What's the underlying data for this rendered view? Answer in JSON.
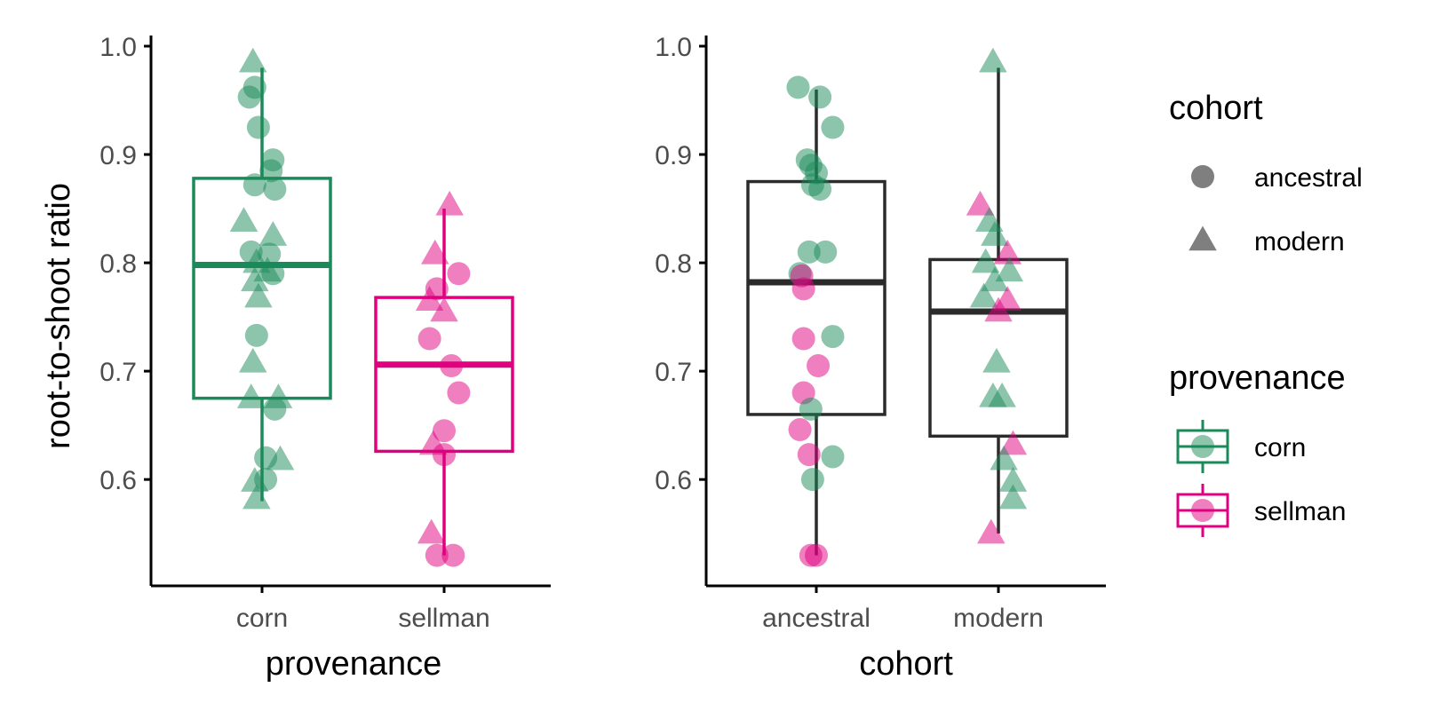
{
  "colors": {
    "corn": "#1b8a5a",
    "sellman": "#e0007f",
    "neutral": "#2b2b2b",
    "legend_shape": "#7f7f7f"
  },
  "chart_data": [
    {
      "type": "box",
      "panel": "left",
      "xlabel": "provenance",
      "ylabel": "root-to-shoot ratio",
      "categories": [
        "corn",
        "sellman"
      ],
      "ylim": [
        0.51,
        1.0
      ],
      "yticks": [
        0.6,
        0.7,
        0.8,
        0.9,
        1.0
      ],
      "ytick_labels": [
        "0.6",
        "0.7",
        "0.8",
        "0.9",
        "1.0"
      ],
      "boxes": [
        {
          "category": "corn",
          "color_key": "corn",
          "lower_whisker": 0.58,
          "q1": 0.675,
          "median": 0.798,
          "q3": 0.878,
          "upper_whisker": 0.98
        },
        {
          "category": "sellman",
          "color_key": "sellman",
          "lower_whisker": 0.53,
          "q1": 0.626,
          "median": 0.706,
          "q3": 0.768,
          "upper_whisker": 0.85
        }
      ],
      "points": [
        {
          "category": "corn",
          "color_key": "corn",
          "shape": "triangle",
          "jitter": -0.05,
          "y": 0.985
        },
        {
          "category": "corn",
          "color_key": "corn",
          "shape": "circle",
          "jitter": -0.04,
          "y": 0.962
        },
        {
          "category": "corn",
          "color_key": "corn",
          "shape": "circle",
          "jitter": -0.07,
          "y": 0.953
        },
        {
          "category": "corn",
          "color_key": "corn",
          "shape": "circle",
          "jitter": -0.02,
          "y": 0.925
        },
        {
          "category": "corn",
          "color_key": "corn",
          "shape": "circle",
          "jitter": 0.06,
          "y": 0.895
        },
        {
          "category": "corn",
          "color_key": "corn",
          "shape": "circle",
          "jitter": 0.05,
          "y": 0.885
        },
        {
          "category": "corn",
          "color_key": "corn",
          "shape": "circle",
          "jitter": -0.04,
          "y": 0.872
        },
        {
          "category": "corn",
          "color_key": "corn",
          "shape": "circle",
          "jitter": 0.07,
          "y": 0.868
        },
        {
          "category": "corn",
          "color_key": "corn",
          "shape": "triangle",
          "jitter": -0.1,
          "y": 0.838
        },
        {
          "category": "corn",
          "color_key": "corn",
          "shape": "triangle",
          "jitter": 0.06,
          "y": 0.825
        },
        {
          "category": "corn",
          "color_key": "corn",
          "shape": "circle",
          "jitter": -0.06,
          "y": 0.81
        },
        {
          "category": "corn",
          "color_key": "corn",
          "shape": "circle",
          "jitter": 0.04,
          "y": 0.808
        },
        {
          "category": "corn",
          "color_key": "corn",
          "shape": "triangle",
          "jitter": -0.03,
          "y": 0.8
        },
        {
          "category": "corn",
          "color_key": "corn",
          "shape": "triangle",
          "jitter": 0.03,
          "y": 0.792
        },
        {
          "category": "corn",
          "color_key": "corn",
          "shape": "circle",
          "jitter": 0.06,
          "y": 0.79
        },
        {
          "category": "corn",
          "color_key": "corn",
          "shape": "triangle",
          "jitter": -0.04,
          "y": 0.783
        },
        {
          "category": "corn",
          "color_key": "corn",
          "shape": "triangle",
          "jitter": -0.02,
          "y": 0.768
        },
        {
          "category": "corn",
          "color_key": "corn",
          "shape": "circle",
          "jitter": -0.03,
          "y": 0.733
        },
        {
          "category": "corn",
          "color_key": "corn",
          "shape": "triangle",
          "jitter": -0.05,
          "y": 0.708
        },
        {
          "category": "corn",
          "color_key": "corn",
          "shape": "triangle",
          "jitter": -0.06,
          "y": 0.675
        },
        {
          "category": "corn",
          "color_key": "corn",
          "shape": "triangle",
          "jitter": 0.09,
          "y": 0.675
        },
        {
          "category": "corn",
          "color_key": "corn",
          "shape": "circle",
          "jitter": 0.07,
          "y": 0.665
        },
        {
          "category": "corn",
          "color_key": "corn",
          "shape": "circle",
          "jitter": 0.02,
          "y": 0.62
        },
        {
          "category": "corn",
          "color_key": "corn",
          "shape": "triangle",
          "jitter": 0.1,
          "y": 0.618
        },
        {
          "category": "corn",
          "color_key": "corn",
          "shape": "triangle",
          "jitter": -0.04,
          "y": 0.598
        },
        {
          "category": "corn",
          "color_key": "corn",
          "shape": "circle",
          "jitter": 0.02,
          "y": 0.6
        },
        {
          "category": "corn",
          "color_key": "corn",
          "shape": "triangle",
          "jitter": -0.03,
          "y": 0.582
        },
        {
          "category": "sellman",
          "color_key": "sellman",
          "shape": "triangle",
          "jitter": 0.03,
          "y": 0.853
        },
        {
          "category": "sellman",
          "color_key": "sellman",
          "shape": "triangle",
          "jitter": -0.05,
          "y": 0.808
        },
        {
          "category": "sellman",
          "color_key": "sellman",
          "shape": "circle",
          "jitter": 0.08,
          "y": 0.79
        },
        {
          "category": "sellman",
          "color_key": "sellman",
          "shape": "circle",
          "jitter": -0.04,
          "y": 0.776
        },
        {
          "category": "sellman",
          "color_key": "sellman",
          "shape": "triangle",
          "jitter": -0.08,
          "y": 0.765
        },
        {
          "category": "sellman",
          "color_key": "sellman",
          "shape": "triangle",
          "jitter": 0.0,
          "y": 0.755
        },
        {
          "category": "sellman",
          "color_key": "sellman",
          "shape": "circle",
          "jitter": -0.08,
          "y": 0.73
        },
        {
          "category": "sellman",
          "color_key": "sellman",
          "shape": "circle",
          "jitter": 0.04,
          "y": 0.705
        },
        {
          "category": "sellman",
          "color_key": "sellman",
          "shape": "circle",
          "jitter": 0.08,
          "y": 0.68
        },
        {
          "category": "sellman",
          "color_key": "sellman",
          "shape": "circle",
          "jitter": 0.0,
          "y": 0.645
        },
        {
          "category": "sellman",
          "color_key": "sellman",
          "shape": "triangle",
          "jitter": -0.06,
          "y": 0.632
        },
        {
          "category": "sellman",
          "color_key": "sellman",
          "shape": "circle",
          "jitter": 0.0,
          "y": 0.623
        },
        {
          "category": "sellman",
          "color_key": "sellman",
          "shape": "triangle",
          "jitter": -0.07,
          "y": 0.55
        },
        {
          "category": "sellman",
          "color_key": "sellman",
          "shape": "circle",
          "jitter": -0.04,
          "y": 0.53
        },
        {
          "category": "sellman",
          "color_key": "sellman",
          "shape": "circle",
          "jitter": 0.05,
          "y": 0.53
        }
      ]
    },
    {
      "type": "box",
      "panel": "right",
      "xlabel": "cohort",
      "ylabel": "",
      "categories": [
        "ancestral",
        "modern"
      ],
      "ylim": [
        0.51,
        1.0
      ],
      "yticks": [
        0.6,
        0.7,
        0.8,
        0.9,
        1.0
      ],
      "ytick_labels": [
        "0.6",
        "0.7",
        "0.8",
        "0.9",
        "1.0"
      ],
      "boxes": [
        {
          "category": "ancestral",
          "color_key": "neutral",
          "lower_whisker": 0.53,
          "q1": 0.66,
          "median": 0.782,
          "q3": 0.875,
          "upper_whisker": 0.96
        },
        {
          "category": "modern",
          "color_key": "neutral",
          "lower_whisker": 0.55,
          "q1": 0.64,
          "median": 0.755,
          "q3": 0.803,
          "upper_whisker": 0.98
        }
      ],
      "points": [
        {
          "category": "ancestral",
          "color_key": "corn",
          "shape": "circle",
          "jitter": -0.1,
          "y": 0.962
        },
        {
          "category": "ancestral",
          "color_key": "corn",
          "shape": "circle",
          "jitter": 0.02,
          "y": 0.953
        },
        {
          "category": "ancestral",
          "color_key": "corn",
          "shape": "circle",
          "jitter": 0.09,
          "y": 0.925
        },
        {
          "category": "ancestral",
          "color_key": "corn",
          "shape": "circle",
          "jitter": -0.05,
          "y": 0.895
        },
        {
          "category": "ancestral",
          "color_key": "corn",
          "shape": "circle",
          "jitter": -0.03,
          "y": 0.89
        },
        {
          "category": "ancestral",
          "color_key": "corn",
          "shape": "circle",
          "jitter": 0.0,
          "y": 0.883
        },
        {
          "category": "ancestral",
          "color_key": "corn",
          "shape": "circle",
          "jitter": -0.02,
          "y": 0.872
        },
        {
          "category": "ancestral",
          "color_key": "corn",
          "shape": "circle",
          "jitter": 0.02,
          "y": 0.868
        },
        {
          "category": "ancestral",
          "color_key": "corn",
          "shape": "circle",
          "jitter": -0.04,
          "y": 0.81
        },
        {
          "category": "ancestral",
          "color_key": "corn",
          "shape": "circle",
          "jitter": 0.05,
          "y": 0.81
        },
        {
          "category": "ancestral",
          "color_key": "corn",
          "shape": "circle",
          "jitter": -0.09,
          "y": 0.79
        },
        {
          "category": "ancestral",
          "color_key": "sellman",
          "shape": "circle",
          "jitter": -0.08,
          "y": 0.788
        },
        {
          "category": "ancestral",
          "color_key": "sellman",
          "shape": "circle",
          "jitter": -0.07,
          "y": 0.776
        },
        {
          "category": "ancestral",
          "color_key": "corn",
          "shape": "circle",
          "jitter": 0.09,
          "y": 0.732
        },
        {
          "category": "ancestral",
          "color_key": "sellman",
          "shape": "circle",
          "jitter": -0.07,
          "y": 0.73
        },
        {
          "category": "ancestral",
          "color_key": "sellman",
          "shape": "circle",
          "jitter": 0.01,
          "y": 0.705
        },
        {
          "category": "ancestral",
          "color_key": "sellman",
          "shape": "circle",
          "jitter": -0.07,
          "y": 0.68
        },
        {
          "category": "ancestral",
          "color_key": "corn",
          "shape": "circle",
          "jitter": -0.03,
          "y": 0.665
        },
        {
          "category": "ancestral",
          "color_key": "sellman",
          "shape": "circle",
          "jitter": -0.09,
          "y": 0.646
        },
        {
          "category": "ancestral",
          "color_key": "sellman",
          "shape": "circle",
          "jitter": -0.04,
          "y": 0.623
        },
        {
          "category": "ancestral",
          "color_key": "corn",
          "shape": "circle",
          "jitter": 0.09,
          "y": 0.621
        },
        {
          "category": "ancestral",
          "color_key": "corn",
          "shape": "circle",
          "jitter": -0.02,
          "y": 0.6
        },
        {
          "category": "ancestral",
          "color_key": "sellman",
          "shape": "circle",
          "jitter": -0.03,
          "y": 0.53
        },
        {
          "category": "ancestral",
          "color_key": "sellman",
          "shape": "circle",
          "jitter": 0.0,
          "y": 0.53
        },
        {
          "category": "modern",
          "color_key": "corn",
          "shape": "triangle",
          "jitter": -0.03,
          "y": 0.985
        },
        {
          "category": "modern",
          "color_key": "sellman",
          "shape": "triangle",
          "jitter": -0.1,
          "y": 0.853
        },
        {
          "category": "modern",
          "color_key": "corn",
          "shape": "triangle",
          "jitter": -0.05,
          "y": 0.838
        },
        {
          "category": "modern",
          "color_key": "corn",
          "shape": "triangle",
          "jitter": -0.02,
          "y": 0.825
        },
        {
          "category": "modern",
          "color_key": "sellman",
          "shape": "triangle",
          "jitter": 0.05,
          "y": 0.808
        },
        {
          "category": "modern",
          "color_key": "corn",
          "shape": "triangle",
          "jitter": -0.07,
          "y": 0.8
        },
        {
          "category": "modern",
          "color_key": "corn",
          "shape": "triangle",
          "jitter": 0.06,
          "y": 0.792
        },
        {
          "category": "modern",
          "color_key": "corn",
          "shape": "triangle",
          "jitter": -0.02,
          "y": 0.783
        },
        {
          "category": "modern",
          "color_key": "corn",
          "shape": "triangle",
          "jitter": -0.08,
          "y": 0.768
        },
        {
          "category": "modern",
          "color_key": "sellman",
          "shape": "triangle",
          "jitter": 0.05,
          "y": 0.765
        },
        {
          "category": "modern",
          "color_key": "sellman",
          "shape": "triangle",
          "jitter": 0.0,
          "y": 0.755
        },
        {
          "category": "modern",
          "color_key": "corn",
          "shape": "triangle",
          "jitter": -0.01,
          "y": 0.708
        },
        {
          "category": "modern",
          "color_key": "corn",
          "shape": "triangle",
          "jitter": -0.03,
          "y": 0.676
        },
        {
          "category": "modern",
          "color_key": "corn",
          "shape": "triangle",
          "jitter": 0.02,
          "y": 0.676
        },
        {
          "category": "modern",
          "color_key": "sellman",
          "shape": "triangle",
          "jitter": 0.08,
          "y": 0.632
        },
        {
          "category": "modern",
          "color_key": "corn",
          "shape": "triangle",
          "jitter": 0.03,
          "y": 0.618
        },
        {
          "category": "modern",
          "color_key": "corn",
          "shape": "triangle",
          "jitter": 0.08,
          "y": 0.598
        },
        {
          "category": "modern",
          "color_key": "corn",
          "shape": "triangle",
          "jitter": 0.08,
          "y": 0.582
        },
        {
          "category": "modern",
          "color_key": "sellman",
          "shape": "triangle",
          "jitter": -0.04,
          "y": 0.55
        }
      ]
    }
  ],
  "legend": {
    "placement": "right",
    "shape_title": "cohort",
    "shape_items": [
      {
        "label": "ancestral",
        "shape": "circle"
      },
      {
        "label": "modern",
        "shape": "triangle"
      }
    ],
    "color_title": "provenance",
    "color_items": [
      {
        "label": "corn",
        "color_key": "corn"
      },
      {
        "label": "sellman",
        "color_key": "sellman"
      }
    ]
  }
}
